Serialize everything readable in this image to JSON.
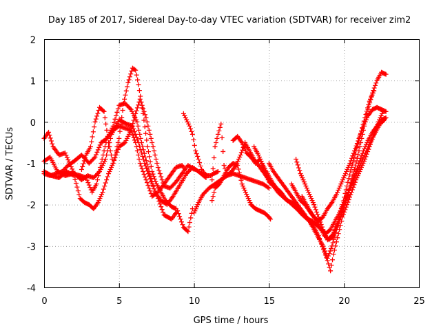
{
  "chart_data": {
    "type": "scatter",
    "title": "Day 185 of 2017, Sidereal Day-to-day VTEC variation (SDTVAR) for receiver zim2",
    "xlabel": "GPS time / hours",
    "ylabel": "SDTVAR / TECUs",
    "xlim": [
      0,
      25
    ],
    "ylim": [
      -4,
      2
    ],
    "xticks": [
      "0",
      "5",
      "10",
      "15",
      "20",
      "25"
    ],
    "yticks": [
      "-4",
      "-3",
      "-2",
      "-1",
      "0",
      "1",
      "2"
    ],
    "grid": true,
    "marker": "+",
    "color": "#ff0000",
    "series": [
      {
        "x": [
          0.0,
          0.3,
          0.6,
          1.0,
          1.4,
          2.0,
          2.5,
          2.9,
          3.3,
          3.7,
          4.1,
          4.5,
          5.0,
          5.5,
          5.9,
          6.3,
          6.7,
          7.2,
          7.6,
          8.0,
          8.5,
          8.9,
          9.3,
          9.6,
          9.9
        ],
        "y": [
          -0.4,
          -0.25,
          -0.6,
          -0.8,
          -0.75,
          -1.25,
          -1.4,
          -1.3,
          -1.35,
          -1.2,
          -0.9,
          -0.3,
          0.05,
          -0.05,
          -0.1,
          -0.5,
          -1.0,
          -1.5,
          -1.85,
          -2.25,
          -2.35,
          -2.15,
          -2.55,
          -2.65,
          -2.1
        ]
      },
      {
        "x": [
          0.0,
          0.4,
          0.8,
          1.2,
          1.6,
          2.0,
          2.5,
          3.0,
          3.4,
          3.8,
          4.2,
          4.6,
          5.0,
          5.4,
          5.8,
          6.2,
          6.5,
          7.0,
          7.4,
          7.8,
          8.2,
          8.6,
          9.1,
          9.5,
          9.9,
          10.3,
          10.8
        ],
        "y": [
          -1.25,
          -1.3,
          -1.25,
          -1.2,
          -1.05,
          -0.95,
          -0.8,
          -1.0,
          -0.85,
          -0.5,
          -0.4,
          -0.1,
          0.4,
          0.45,
          0.3,
          0.0,
          -0.5,
          -1.2,
          -1.7,
          -1.9,
          -2.0,
          -1.8,
          -1.5,
          -1.25,
          -1.1,
          -1.2,
          -1.35
        ]
      },
      {
        "x": [
          0.0,
          0.4,
          0.9,
          1.4,
          1.9,
          2.4,
          2.8,
          3.2,
          3.5,
          3.8,
          4.2,
          4.6,
          5.0,
          5.4,
          5.8,
          6.1,
          6.4,
          6.8,
          7.2,
          7.6,
          8.0,
          8.4,
          8.8,
          9.2,
          9.4
        ],
        "y": [
          -0.95,
          -0.85,
          -1.2,
          -1.3,
          -1.25,
          -1.3,
          -1.35,
          -1.7,
          -1.5,
          -1.0,
          -0.4,
          -0.2,
          -0.1,
          -0.15,
          -0.2,
          -0.5,
          -1.0,
          -1.4,
          -1.8,
          -1.7,
          -1.5,
          -1.3,
          -1.1,
          -1.05,
          -1.15
        ]
      },
      {
        "x": [
          0.0,
          0.5,
          1.0,
          1.5,
          2.0,
          2.4,
          2.7,
          3.0,
          3.3,
          3.6,
          3.9,
          4.3,
          4.6,
          5.0,
          5.3,
          5.6,
          5.9,
          6.1,
          6.3,
          6.6,
          6.9,
          7.2,
          7.5,
          7.8,
          8.1,
          8.5,
          8.8
        ],
        "y": [
          -1.2,
          -1.3,
          -1.35,
          -1.2,
          -1.3,
          -1.85,
          -1.95,
          -2.0,
          -2.1,
          -1.95,
          -1.7,
          -1.25,
          -1.0,
          -0.4,
          0.45,
          0.95,
          1.3,
          1.25,
          0.9,
          0.2,
          -0.6,
          -1.2,
          -1.5,
          -1.7,
          -1.9,
          -2.05,
          -2.1
        ]
      },
      {
        "x": [
          2.5,
          2.8,
          3.1,
          3.4,
          3.7,
          4.0,
          4.3,
          4.6,
          5.0,
          5.4,
          5.8,
          6.1,
          6.4,
          6.8,
          7.2,
          7.6,
          8.0,
          8.4,
          8.8,
          9.2,
          9.6,
          10.0
        ],
        "y": [
          -1.15,
          -0.8,
          -0.6,
          0.0,
          0.35,
          0.25,
          -0.5,
          -1.0,
          -0.6,
          -0.5,
          -0.2,
          0.2,
          0.55,
          0.1,
          -0.5,
          -1.1,
          -1.55,
          -1.6,
          -1.45,
          -1.25,
          -1.05,
          -1.15
        ]
      },
      {
        "x": [
          9.3,
          9.5,
          9.7,
          9.9,
          10.1,
          10.3,
          10.5,
          10.7,
          10.9,
          11.1,
          11.3,
          11.6
        ],
        "y": [
          0.2,
          0.05,
          -0.1,
          -0.3,
          -0.7,
          -0.9,
          -1.15,
          -1.25,
          -1.3,
          -1.3,
          -1.25,
          -1.2
        ]
      },
      {
        "x": [
          11.2,
          11.4,
          11.6,
          11.8,
          12.0,
          12.2,
          12.5,
          12.8,
          13.1,
          13.4,
          13.7,
          14.0,
          14.3,
          14.6,
          14.9,
          15.1
        ],
        "y": [
          -1.4,
          -0.6,
          -0.3,
          -0.05,
          -1.05,
          -1.3,
          -1.2,
          -1.05,
          -0.8,
          -0.5,
          -0.7,
          -0.9,
          -1.05,
          -1.2,
          -1.35,
          -1.45
        ]
      },
      {
        "x": [
          11.2,
          11.4,
          11.7,
          12.0,
          12.3,
          12.6,
          12.9,
          13.2,
          13.5,
          13.8,
          14.1,
          14.4,
          14.7,
          15.0,
          15.1
        ],
        "y": [
          -1.9,
          -1.6,
          -1.5,
          -1.3,
          -1.1,
          -1.0,
          -1.05,
          -1.5,
          -1.75,
          -2.0,
          -2.1,
          -2.15,
          -2.2,
          -2.3,
          -2.35
        ]
      },
      {
        "x": [
          10.0,
          10.3,
          10.6,
          11.0,
          11.4,
          11.8,
          12.2,
          12.6,
          13.0,
          13.4,
          13.8,
          14.2,
          14.6,
          15.0
        ],
        "y": [
          -2.2,
          -1.95,
          -1.75,
          -1.6,
          -1.5,
          -1.4,
          -1.3,
          -1.25,
          -1.3,
          -1.35,
          -1.4,
          -1.45,
          -1.5,
          -1.6
        ]
      },
      {
        "x": [
          12.6,
          12.9,
          13.2,
          13.5,
          13.8,
          14.1,
          14.4,
          14.7,
          15.0,
          15.3,
          15.6,
          15.9,
          16.2,
          16.5,
          16.8,
          17.1,
          17.4,
          17.7,
          18.0,
          18.3,
          18.6,
          18.9,
          19.2,
          19.5,
          19.8,
          20.1,
          20.4,
          20.7,
          21.0,
          21.3,
          21.6,
          21.9,
          22.2,
          22.5,
          22.8
        ],
        "y": [
          -0.45,
          -0.35,
          -0.5,
          -0.75,
          -0.85,
          -1.0,
          -0.9,
          -1.2,
          -1.45,
          -1.55,
          -1.7,
          -1.8,
          -1.9,
          -1.95,
          -2.0,
          -2.2,
          -2.3,
          -2.4,
          -2.6,
          -2.8,
          -3.0,
          -3.3,
          -3.0,
          -2.6,
          -2.2,
          -1.9,
          -1.6,
          -1.3,
          -1.0,
          -0.7,
          -0.45,
          -0.25,
          -0.1,
          0.05,
          0.1
        ]
      },
      {
        "x": [
          14.0,
          14.3,
          14.6,
          14.9,
          15.2,
          15.5,
          15.8,
          16.1,
          16.4,
          16.7,
          17.0,
          17.3,
          17.6,
          17.9,
          18.2,
          18.5,
          18.8,
          19.1,
          19.4,
          19.7,
          20.0,
          20.3,
          20.6,
          20.9,
          21.2,
          21.5,
          21.8,
          22.1,
          22.4,
          22.7
        ],
        "y": [
          -0.6,
          -0.8,
          -1.05,
          -1.25,
          -1.45,
          -1.6,
          -1.7,
          -1.85,
          -1.95,
          -2.05,
          -2.15,
          -2.25,
          -2.35,
          -2.4,
          -2.5,
          -2.6,
          -2.7,
          -2.6,
          -2.4,
          -2.2,
          -1.95,
          -1.7,
          -1.45,
          -1.2,
          -0.95,
          -0.7,
          -0.45,
          -0.25,
          -0.05,
          0.05
        ]
      },
      {
        "x": [
          15.0,
          15.3,
          15.6,
          15.9,
          16.2,
          16.5,
          16.8,
          17.1,
          17.4,
          17.7,
          18.0,
          18.3,
          18.5,
          18.7,
          18.9,
          19.1,
          19.3,
          19.5,
          19.7,
          19.9,
          20.2,
          20.5,
          20.8,
          21.1,
          21.4,
          21.7,
          22.0,
          22.3,
          22.6
        ],
        "y": [
          -1.0,
          -1.2,
          -1.35,
          -1.5,
          -1.65,
          -1.8,
          -1.95,
          -2.1,
          -2.25,
          -2.4,
          -2.55,
          -2.75,
          -2.95,
          -3.15,
          -3.35,
          -3.6,
          -3.2,
          -2.9,
          -2.6,
          -2.3,
          -2.0,
          -1.7,
          -1.4,
          -1.15,
          -0.9,
          -0.6,
          -0.3,
          0.0,
          0.25
        ]
      },
      {
        "x": [
          16.5,
          16.8,
          17.1,
          17.4,
          17.7,
          18.0,
          18.3,
          18.6,
          18.9,
          19.2,
          19.5,
          19.8,
          20.1,
          20.4,
          20.7,
          21.0,
          21.3,
          21.6,
          21.9,
          22.2,
          22.5,
          22.8
        ],
        "y": [
          -1.5,
          -1.7,
          -1.9,
          -2.0,
          -2.15,
          -2.3,
          -2.4,
          -2.3,
          -2.1,
          -1.95,
          -1.75,
          -1.5,
          -1.25,
          -1.0,
          -0.7,
          -0.4,
          -0.1,
          0.15,
          0.3,
          0.35,
          0.3,
          0.25
        ]
      },
      {
        "x": [
          16.8,
          17.1,
          17.4,
          17.7,
          18.0,
          18.3,
          18.6,
          18.9,
          19.2,
          19.5,
          19.8,
          20.1,
          20.4,
          20.7,
          21.0,
          21.3,
          21.6,
          21.9,
          22.2,
          22.5,
          22.8
        ],
        "y": [
          -0.9,
          -1.25,
          -1.5,
          -1.75,
          -2.0,
          -2.3,
          -2.6,
          -2.85,
          -2.75,
          -2.55,
          -2.3,
          -1.95,
          -1.55,
          -1.15,
          -0.7,
          -0.2,
          0.3,
          0.7,
          1.0,
          1.2,
          1.15
        ]
      },
      {
        "x": [
          17.2,
          17.5,
          17.8,
          18.1,
          18.4,
          18.7,
          19.0,
          19.3,
          19.6,
          19.9,
          20.2,
          20.5,
          20.8,
          21.1,
          21.4,
          21.7,
          22.0
        ],
        "y": [
          -1.8,
          -2.0,
          -2.2,
          -2.35,
          -2.55,
          -2.75,
          -2.85,
          -2.75,
          -2.4,
          -2.0,
          -1.55,
          -1.1,
          -0.7,
          -0.3,
          0.1,
          0.5,
          0.75
        ]
      }
    ]
  }
}
